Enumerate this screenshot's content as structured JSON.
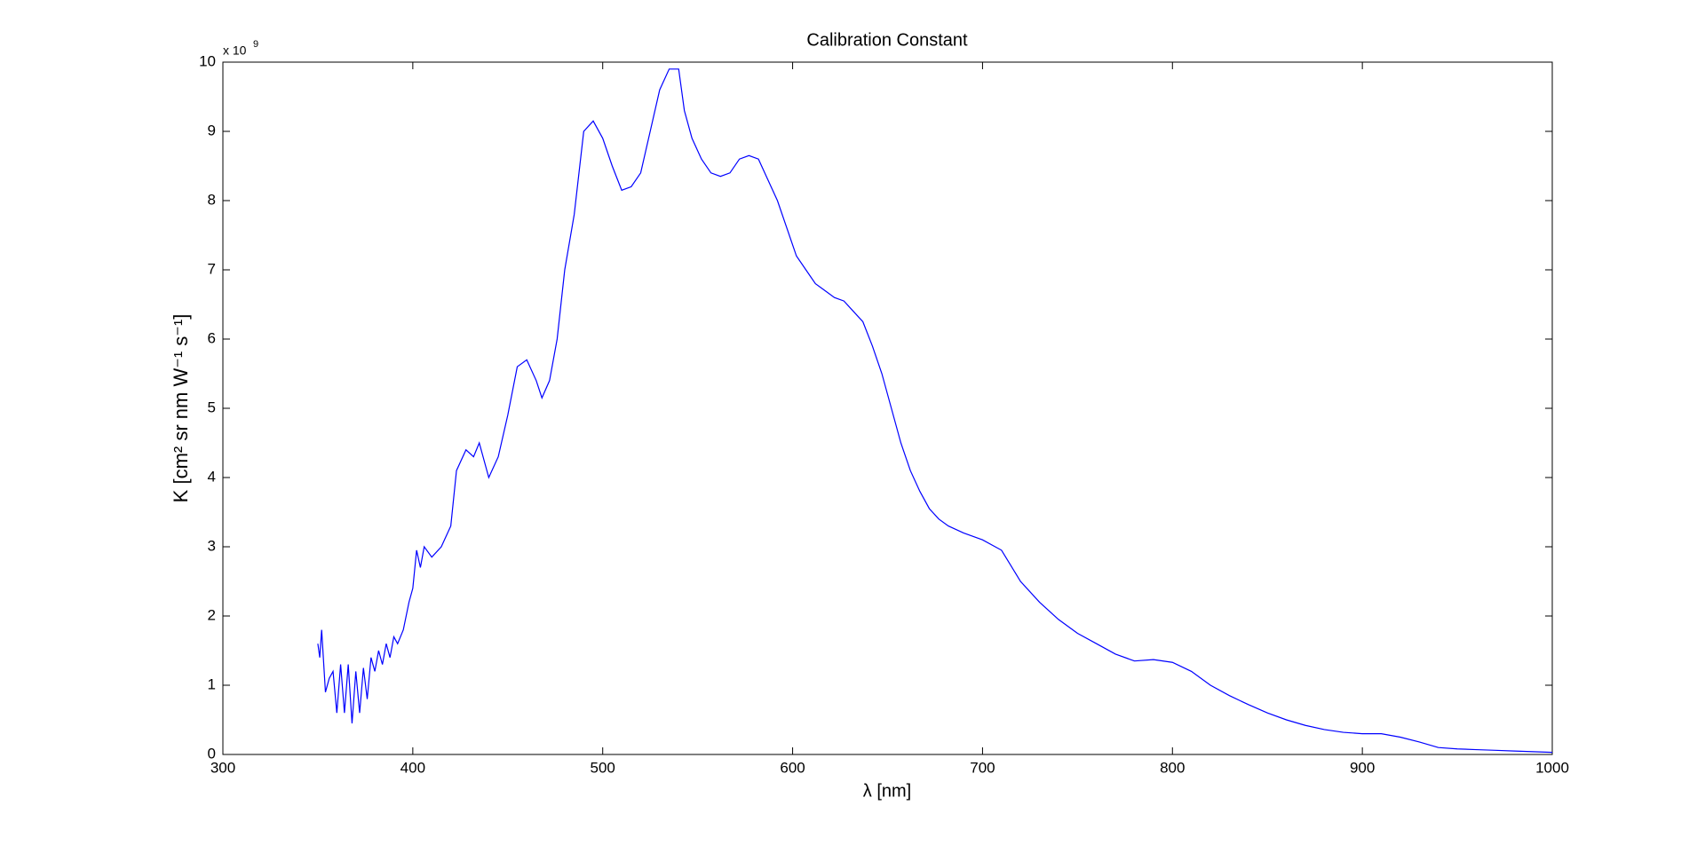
{
  "chart_data": {
    "type": "line",
    "title": "Calibration Constant",
    "x_label": "λ [nm]",
    "y_label": "K [cm² sr nm W⁻¹ s⁻¹]",
    "y_multiplier": {
      "base": "x 10",
      "exponent": "9"
    },
    "xlim": [
      300,
      1000
    ],
    "xticks": [
      300,
      400,
      500,
      600,
      700,
      800,
      900,
      1000
    ],
    "ylim": [
      0,
      10
    ],
    "yticks": [
      0,
      1,
      2,
      3,
      4,
      5,
      6,
      7,
      8,
      9,
      10
    ],
    "x": [
      350,
      351,
      352,
      354,
      356,
      358,
      360,
      362,
      364,
      366,
      368,
      370,
      372,
      374,
      376,
      378,
      380,
      382,
      384,
      386,
      388,
      390,
      392,
      395,
      398,
      400,
      402,
      404,
      406,
      410,
      415,
      420,
      423,
      428,
      432,
      435,
      440,
      445,
      450,
      455,
      460,
      465,
      468,
      472,
      476,
      480,
      485,
      490,
      495,
      500,
      505,
      510,
      515,
      520,
      525,
      530,
      535,
      540,
      543,
      547,
      552,
      557,
      562,
      567,
      572,
      577,
      582,
      587,
      592,
      597,
      602,
      607,
      612,
      617,
      622,
      627,
      632,
      637,
      642,
      647,
      652,
      657,
      662,
      667,
      672,
      677,
      682,
      690,
      700,
      710,
      720,
      730,
      740,
      750,
      760,
      770,
      780,
      790,
      800,
      810,
      820,
      830,
      840,
      850,
      860,
      870,
      880,
      890,
      900,
      910,
      920,
      930,
      940,
      950,
      960,
      970,
      980,
      990,
      1000
    ],
    "series": [
      {
        "name": "K",
        "color": "#0000ff",
        "values": [
          1.6,
          1.4,
          1.8,
          0.9,
          1.1,
          1.2,
          0.6,
          1.3,
          0.6,
          1.3,
          0.45,
          1.2,
          0.6,
          1.25,
          0.8,
          1.4,
          1.2,
          1.5,
          1.3,
          1.6,
          1.4,
          1.7,
          1.6,
          1.8,
          2.2,
          2.4,
          2.95,
          2.7,
          3.0,
          2.85,
          3.0,
          3.3,
          4.1,
          4.4,
          4.3,
          4.5,
          4.0,
          4.3,
          4.9,
          5.6,
          5.7,
          5.4,
          5.15,
          5.4,
          6.0,
          7.0,
          7.8,
          9.0,
          9.15,
          8.9,
          8.5,
          8.15,
          8.2,
          8.4,
          9.0,
          9.6,
          9.9,
          9.9,
          9.3,
          8.9,
          8.6,
          8.4,
          8.35,
          8.4,
          8.6,
          8.65,
          8.6,
          8.3,
          8.0,
          7.6,
          7.2,
          7.0,
          6.8,
          6.7,
          6.6,
          6.55,
          6.4,
          6.25,
          5.9,
          5.5,
          5.0,
          4.5,
          4.1,
          3.8,
          3.55,
          3.4,
          3.3,
          3.2,
          3.1,
          2.95,
          2.5,
          2.2,
          1.95,
          1.75,
          1.6,
          1.45,
          1.35,
          1.37,
          1.33,
          1.2,
          1.0,
          0.85,
          0.72,
          0.6,
          0.5,
          0.42,
          0.36,
          0.32,
          0.3,
          0.3,
          0.25,
          0.18,
          0.1,
          0.08,
          0.07,
          0.06,
          0.05,
          0.04,
          0.03
        ]
      }
    ]
  }
}
